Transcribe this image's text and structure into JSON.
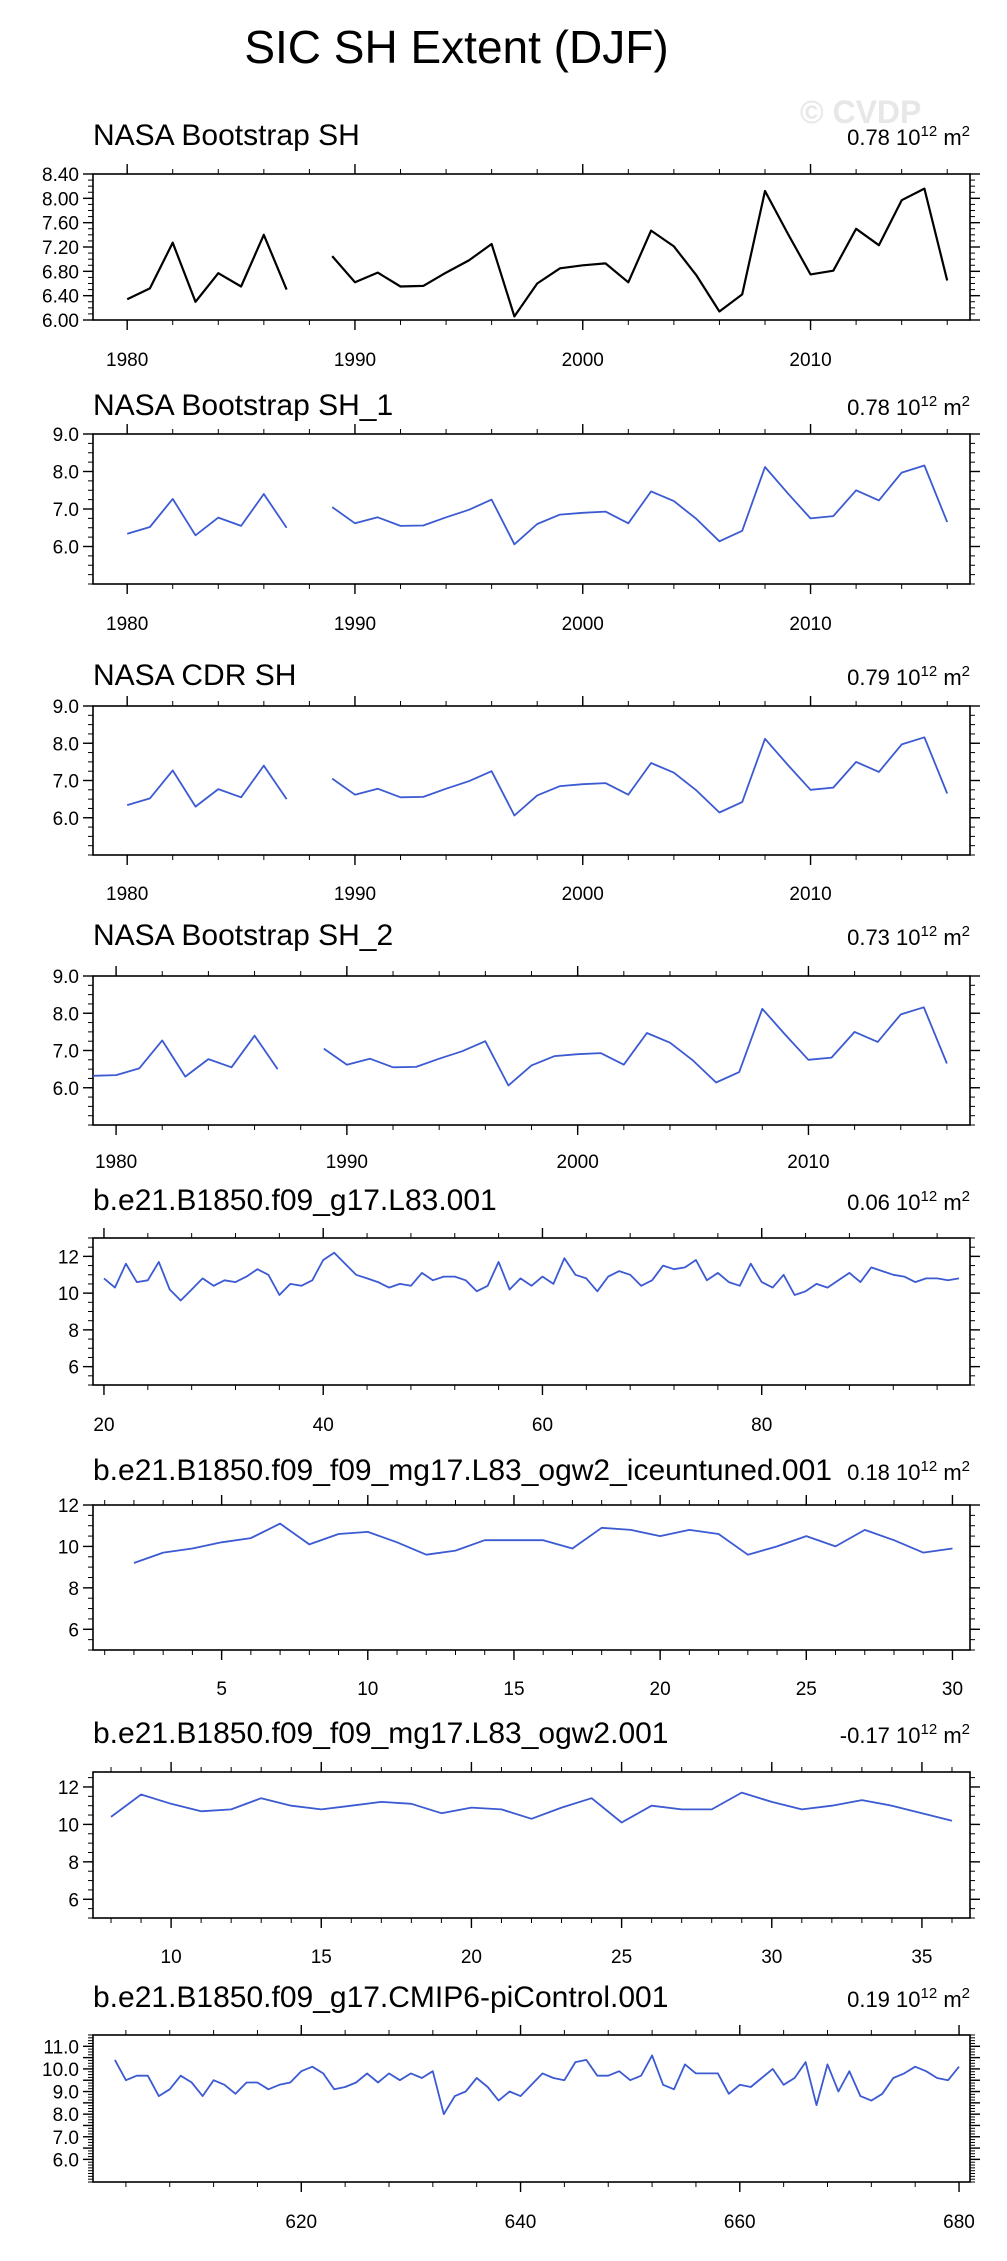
{
  "figure": {
    "title": "SIC SH Extent (DJF)",
    "watermark": "© CVDP",
    "colors": {
      "black": "#000000",
      "blue": "#3c5ad2",
      "axis": "#000000"
    }
  },
  "chart_data": [
    {
      "type": "line",
      "title": "NASA Bootstrap SH",
      "trend": "0.78",
      "unit_base": "10",
      "unit_exp": "12",
      "unit_suffix": "m",
      "unit_suffix_exp": "2",
      "color": "#000000",
      "xlim": [
        1978.5,
        2017.0
      ],
      "ylim": [
        6.0,
        8.4
      ],
      "xticks": [
        1980,
        1990,
        2000,
        2010
      ],
      "xtick_labels": [
        "1980",
        "1990",
        "2000",
        "2010"
      ],
      "yticks": [
        6.0,
        6.4,
        6.8,
        7.2,
        7.6,
        8.0,
        8.4
      ],
      "ytick_labels": [
        "6.00",
        "6.40",
        "6.80",
        "7.20",
        "7.60",
        "8.00",
        "8.40"
      ],
      "segments": [
        {
          "x": [
            1980,
            1981,
            1982,
            1983,
            1984,
            1985,
            1986,
            1987
          ],
          "y": [
            6.34,
            6.52,
            7.27,
            6.3,
            6.77,
            6.55,
            7.4,
            6.5
          ]
        },
        {
          "x": [
            1989,
            1990,
            1991,
            1992,
            1993,
            1994,
            1995,
            1996,
            1997,
            1998,
            1999,
            2000,
            2001,
            2002,
            2003,
            2004,
            2005,
            2006,
            2007,
            2008,
            2009,
            2010,
            2011,
            2012,
            2013,
            2014,
            2015,
            2016
          ],
          "y": [
            7.05,
            6.62,
            6.78,
            6.55,
            6.56,
            6.78,
            6.98,
            7.25,
            6.06,
            6.6,
            6.85,
            6.9,
            6.93,
            6.62,
            7.47,
            7.21,
            6.73,
            6.14,
            6.42,
            8.12,
            7.42,
            6.75,
            6.81,
            7.5,
            7.23,
            7.97,
            8.16,
            6.65
          ]
        }
      ]
    },
    {
      "type": "line",
      "title": "NASA Bootstrap SH_1",
      "trend": "0.78",
      "unit_base": "10",
      "unit_exp": "12",
      "unit_suffix": "m",
      "unit_suffix_exp": "2",
      "color": "#3c5ad2",
      "xlim": [
        1978.5,
        2017.0
      ],
      "ylim": [
        5.0,
        9.0
      ],
      "xticks": [
        1980,
        1990,
        2000,
        2010
      ],
      "xtick_labels": [
        "1980",
        "1990",
        "2000",
        "2010"
      ],
      "yticks": [
        6.0,
        7.0,
        8.0,
        9.0
      ],
      "ytick_labels": [
        "6.0",
        "7.0",
        "8.0",
        "9.0"
      ],
      "segments": [
        {
          "x": [
            1980,
            1981,
            1982,
            1983,
            1984,
            1985,
            1986,
            1987
          ],
          "y": [
            6.34,
            6.52,
            7.27,
            6.3,
            6.77,
            6.55,
            7.4,
            6.5
          ]
        },
        {
          "x": [
            1989,
            1990,
            1991,
            1992,
            1993,
            1994,
            1995,
            1996,
            1997,
            1998,
            1999,
            2000,
            2001,
            2002,
            2003,
            2004,
            2005,
            2006,
            2007,
            2008,
            2009,
            2010,
            2011,
            2012,
            2013,
            2014,
            2015,
            2016
          ],
          "y": [
            7.05,
            6.62,
            6.78,
            6.55,
            6.56,
            6.78,
            6.98,
            7.25,
            6.06,
            6.6,
            6.85,
            6.9,
            6.93,
            6.62,
            7.47,
            7.21,
            6.73,
            6.14,
            6.42,
            8.12,
            7.42,
            6.75,
            6.81,
            7.5,
            7.23,
            7.97,
            8.16,
            6.65
          ]
        }
      ]
    },
    {
      "type": "line",
      "title": "NASA CDR SH",
      "trend": "0.79",
      "unit_base": "10",
      "unit_exp": "12",
      "unit_suffix": "m",
      "unit_suffix_exp": "2",
      "color": "#3c5ad2",
      "xlim": [
        1978.5,
        2017.0
      ],
      "ylim": [
        5.0,
        9.0
      ],
      "xticks": [
        1980,
        1990,
        2000,
        2010
      ],
      "xtick_labels": [
        "1980",
        "1990",
        "2000",
        "2010"
      ],
      "yticks": [
        6.0,
        7.0,
        8.0,
        9.0
      ],
      "ytick_labels": [
        "6.0",
        "7.0",
        "8.0",
        "9.0"
      ],
      "segments": [
        {
          "x": [
            1980,
            1981,
            1982,
            1983,
            1984,
            1985,
            1986,
            1987
          ],
          "y": [
            6.34,
            6.52,
            7.27,
            6.3,
            6.77,
            6.55,
            7.4,
            6.5
          ]
        },
        {
          "x": [
            1989,
            1990,
            1991,
            1992,
            1993,
            1994,
            1995,
            1996,
            1997,
            1998,
            1999,
            2000,
            2001,
            2002,
            2003,
            2004,
            2005,
            2006,
            2007,
            2008,
            2009,
            2010,
            2011,
            2012,
            2013,
            2014,
            2015,
            2016
          ],
          "y": [
            7.05,
            6.62,
            6.78,
            6.55,
            6.56,
            6.78,
            6.98,
            7.25,
            6.06,
            6.6,
            6.85,
            6.9,
            6.93,
            6.62,
            7.47,
            7.21,
            6.73,
            6.14,
            6.42,
            8.12,
            7.42,
            6.75,
            6.81,
            7.5,
            7.23,
            7.97,
            8.16,
            6.65
          ]
        }
      ]
    },
    {
      "type": "line",
      "title": "NASA Bootstrap SH_2",
      "trend": "0.73",
      "unit_base": "10",
      "unit_exp": "12",
      "unit_suffix": "m",
      "unit_suffix_exp": "2",
      "color": "#3c5ad2",
      "xlim": [
        1979.0,
        2017.0
      ],
      "ylim": [
        5.0,
        9.0
      ],
      "xticks": [
        1980,
        1990,
        2000,
        2010
      ],
      "xtick_labels": [
        "1980",
        "1990",
        "2000",
        "2010"
      ],
      "yticks": [
        6.0,
        7.0,
        8.0,
        9.0
      ],
      "ytick_labels": [
        "6.0",
        "7.0",
        "8.0",
        "9.0"
      ],
      "segments": [
        {
          "x": [
            1979,
            1980,
            1981,
            1982,
            1983,
            1984,
            1985,
            1986,
            1987
          ],
          "y": [
            6.32,
            6.34,
            6.52,
            7.27,
            6.3,
            6.77,
            6.55,
            7.4,
            6.5
          ]
        },
        {
          "x": [
            1989,
            1990,
            1991,
            1992,
            1993,
            1994,
            1995,
            1996,
            1997,
            1998,
            1999,
            2000,
            2001,
            2002,
            2003,
            2004,
            2005,
            2006,
            2007,
            2008,
            2009,
            2010,
            2011,
            2012,
            2013,
            2014,
            2015,
            2016
          ],
          "y": [
            7.05,
            6.62,
            6.78,
            6.55,
            6.56,
            6.78,
            6.98,
            7.25,
            6.06,
            6.6,
            6.85,
            6.9,
            6.93,
            6.62,
            7.47,
            7.21,
            6.73,
            6.14,
            6.42,
            8.12,
            7.42,
            6.75,
            6.81,
            7.5,
            7.23,
            7.97,
            8.16,
            6.65
          ]
        }
      ]
    },
    {
      "type": "line",
      "title": "b.e21.B1850.f09_g17.L83.001",
      "trend": "0.06",
      "unit_base": "10",
      "unit_exp": "12",
      "unit_suffix": "m",
      "unit_suffix_exp": "2",
      "color": "#3c5ad2",
      "xlim": [
        19.0,
        99.0
      ],
      "ylim": [
        5.0,
        13.0
      ],
      "xticks": [
        20,
        40,
        60,
        80
      ],
      "xtick_labels": [
        "20",
        "40",
        "60",
        "80"
      ],
      "yticks": [
        6,
        8,
        10,
        12
      ],
      "ytick_labels": [
        "6",
        "8",
        "10",
        "12"
      ],
      "segments": [
        {
          "x": [
            20,
            21,
            22,
            23,
            24,
            25,
            26,
            27,
            28,
            29,
            30,
            31,
            32,
            33,
            34,
            35,
            36,
            37,
            38,
            39,
            40,
            41,
            42,
            43,
            44,
            45,
            46,
            47,
            48,
            49,
            50,
            51,
            52,
            53,
            54,
            55,
            56,
            57,
            58,
            59,
            60,
            61,
            62,
            63,
            64,
            65,
            66,
            67,
            68,
            69,
            70,
            71,
            72,
            73,
            74,
            75,
            76,
            77,
            78,
            79,
            80,
            81,
            82,
            83,
            84,
            85,
            86,
            87,
            88,
            89,
            90,
            91,
            92,
            93,
            94,
            95,
            96,
            97,
            98
          ],
          "y": [
            10.8,
            10.3,
            11.6,
            10.6,
            10.7,
            11.7,
            10.2,
            9.6,
            10.2,
            10.8,
            10.4,
            10.7,
            10.6,
            10.9,
            11.3,
            11.0,
            9.9,
            10.5,
            10.4,
            10.7,
            11.8,
            12.2,
            11.6,
            11.0,
            10.8,
            10.6,
            10.3,
            10.5,
            10.4,
            11.1,
            10.7,
            10.9,
            10.9,
            10.7,
            10.1,
            10.4,
            11.7,
            10.2,
            10.8,
            10.4,
            10.9,
            10.5,
            11.9,
            11.0,
            10.8,
            10.1,
            10.9,
            11.2,
            11.0,
            10.4,
            10.7,
            11.5,
            11.3,
            11.4,
            11.8,
            10.7,
            11.1,
            10.6,
            10.4,
            11.6,
            10.6,
            10.3,
            11.0,
            9.9,
            10.1,
            10.5,
            10.3,
            10.7,
            11.1,
            10.6,
            11.4,
            11.2,
            11.0,
            10.9,
            10.6,
            10.8,
            10.8,
            10.7,
            10.8
          ]
        }
      ]
    },
    {
      "type": "line",
      "title": "b.e21.B1850.f09_f09_mg17.L83_ogw2_iceuntuned.001",
      "trend": "0.18",
      "unit_base": "10",
      "unit_exp": "12",
      "unit_suffix": "m",
      "unit_suffix_exp": "2",
      "color": "#3c5ad2",
      "xlim": [
        0.6,
        30.6
      ],
      "ylim": [
        5.0,
        12.0
      ],
      "xticks": [
        5,
        10,
        15,
        20,
        25,
        30
      ],
      "xtick_labels": [
        "5",
        "10",
        "15",
        "20",
        "25",
        "30"
      ],
      "yticks": [
        6,
        8,
        10,
        12
      ],
      "ytick_labels": [
        "6",
        "8",
        "10",
        "12"
      ],
      "segments": [
        {
          "x": [
            2,
            3,
            4,
            5,
            6,
            7,
            8,
            9,
            10,
            11,
            12,
            13,
            14,
            15,
            16,
            17,
            18,
            19,
            20,
            21,
            22,
            23,
            24,
            25,
            26,
            27,
            28,
            29,
            30
          ],
          "y": [
            9.2,
            9.7,
            9.9,
            10.2,
            10.4,
            11.1,
            10.1,
            10.6,
            10.7,
            10.2,
            9.6,
            9.8,
            10.3,
            10.3,
            10.3,
            9.9,
            10.9,
            10.8,
            10.5,
            10.8,
            10.6,
            9.6,
            10.0,
            10.5,
            10.0,
            10.8,
            10.3,
            9.7,
            9.9
          ]
        }
      ]
    },
    {
      "type": "line",
      "title": "b.e21.B1850.f09_f09_mg17.L83_ogw2.001",
      "trend": "-0.17",
      "unit_base": "10",
      "unit_exp": "12",
      "unit_suffix": "m",
      "unit_suffix_exp": "2",
      "color": "#3c5ad2",
      "xlim": [
        7.4,
        36.6
      ],
      "ylim": [
        5.0,
        12.8
      ],
      "xticks": [
        10,
        15,
        20,
        25,
        30,
        35
      ],
      "xtick_labels": [
        "10",
        "15",
        "20",
        "25",
        "30",
        "35"
      ],
      "yticks": [
        6,
        8,
        10,
        12
      ],
      "ytick_labels": [
        "6",
        "8",
        "10",
        "12"
      ],
      "segments": [
        {
          "x": [
            8,
            9,
            10,
            11,
            12,
            13,
            14,
            15,
            16,
            17,
            18,
            19,
            20,
            21,
            22,
            23,
            24,
            25,
            26,
            27,
            28,
            29,
            30,
            31,
            32,
            33,
            34,
            35,
            36
          ],
          "y": [
            10.4,
            11.6,
            11.1,
            10.7,
            10.8,
            11.4,
            11.0,
            10.8,
            11.0,
            11.2,
            11.1,
            10.6,
            10.9,
            10.8,
            10.3,
            10.9,
            11.4,
            10.1,
            11.0,
            10.8,
            10.8,
            11.7,
            11.2,
            10.8,
            11.0,
            11.3,
            11.0,
            10.6,
            10.2
          ]
        }
      ]
    },
    {
      "type": "line",
      "title": "b.e21.B1850.f09_g17.CMIP6-piControl.001",
      "trend": "0.19",
      "unit_base": "10",
      "unit_exp": "12",
      "unit_suffix": "m",
      "unit_suffix_exp": "2",
      "color": "#3c5ad2",
      "xlim": [
        601.0,
        681.0
      ],
      "ylim": [
        5.0,
        11.5
      ],
      "xticks": [
        620,
        640,
        660,
        680
      ],
      "xtick_labels": [
        "620",
        "640",
        "660",
        "680"
      ],
      "yticks": [
        6.0,
        6.5,
        7.0,
        7.5,
        8.0,
        8.5,
        9.0,
        9.5,
        10.0,
        10.5,
        11.0
      ],
      "ytick_labels": [
        "6.0",
        "",
        "7.0",
        "",
        "8.0",
        "",
        "9.0",
        "",
        "10.0",
        "",
        "11.0"
      ],
      "segments": [
        {
          "x": [
            603,
            604,
            605,
            606,
            607,
            608,
            609,
            610,
            611,
            612,
            613,
            614,
            615,
            616,
            617,
            618,
            619,
            620,
            621,
            622,
            623,
            624,
            625,
            626,
            627,
            628,
            629,
            630,
            631,
            632,
            633,
            634,
            635,
            636,
            637,
            638,
            639,
            640,
            641,
            642,
            643,
            644,
            645,
            646,
            647,
            648,
            649,
            650,
            651,
            652,
            653,
            654,
            655,
            656,
            657,
            658,
            659,
            660,
            661,
            662,
            663,
            664,
            665,
            666,
            667,
            668,
            669,
            670,
            671,
            672,
            673,
            674,
            675,
            676,
            677,
            678,
            679,
            680
          ],
          "y": [
            10.4,
            9.5,
            9.7,
            9.7,
            8.8,
            9.1,
            9.7,
            9.4,
            8.8,
            9.5,
            9.3,
            8.9,
            9.4,
            9.4,
            9.1,
            9.3,
            9.4,
            9.9,
            10.1,
            9.8,
            9.1,
            9.2,
            9.4,
            9.8,
            9.4,
            9.8,
            9.5,
            9.8,
            9.6,
            9.9,
            8.0,
            8.8,
            9.0,
            9.6,
            9.2,
            8.6,
            9.0,
            8.8,
            9.3,
            9.8,
            9.6,
            9.5,
            10.3,
            10.4,
            9.7,
            9.7,
            9.9,
            9.5,
            9.7,
            10.6,
            9.3,
            9.1,
            10.2,
            9.8,
            9.8,
            9.8,
            8.9,
            9.3,
            9.2,
            9.6,
            10.0,
            9.3,
            9.6,
            10.3,
            8.4,
            10.2,
            9.0,
            9.9,
            8.8,
            8.6,
            8.9,
            9.6,
            9.8,
            10.1,
            9.9,
            9.6,
            9.5,
            10.1
          ]
        }
      ]
    }
  ]
}
